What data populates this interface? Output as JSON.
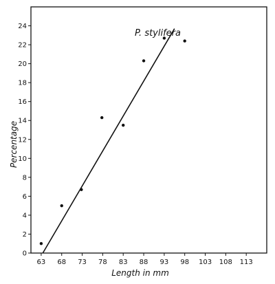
{
  "chart_data": {
    "type": "scatter",
    "xlabel": "Length in mm",
    "ylabel": "Percentage",
    "annotation": "P. stylifera",
    "x_ticks": [
      63,
      68,
      73,
      78,
      83,
      88,
      93,
      98,
      103,
      108,
      113
    ],
    "x_tick_labels": [
      "63",
      "68",
      "73",
      "78",
      "83",
      "88",
      "93",
      "98",
      "103",
      "108",
      "113"
    ],
    "y_ticks": [
      0,
      2,
      4,
      6,
      8,
      10,
      12,
      14,
      16,
      18,
      20,
      22,
      24
    ],
    "y_tick_labels": [
      "0",
      "2",
      "4",
      "6",
      "8",
      "10",
      "12",
      "14",
      "16",
      "18",
      "20",
      "22",
      "24"
    ],
    "xlim": [
      60.5,
      118
    ],
    "ylim": [
      0,
      26
    ],
    "grid": false,
    "points": [
      {
        "x": 63,
        "y": 1.0
      },
      {
        "x": 68,
        "y": 5.0
      },
      {
        "x": 72.8,
        "y": 6.7
      },
      {
        "x": 77.8,
        "y": 14.3
      },
      {
        "x": 83,
        "y": 13.5
      },
      {
        "x": 88,
        "y": 20.3
      },
      {
        "x": 93,
        "y": 22.7
      },
      {
        "x": 98,
        "y": 22.4
      }
    ],
    "fit_line": {
      "x": [
        63.4,
        95.5
      ],
      "y": [
        0,
        23.7
      ]
    }
  }
}
